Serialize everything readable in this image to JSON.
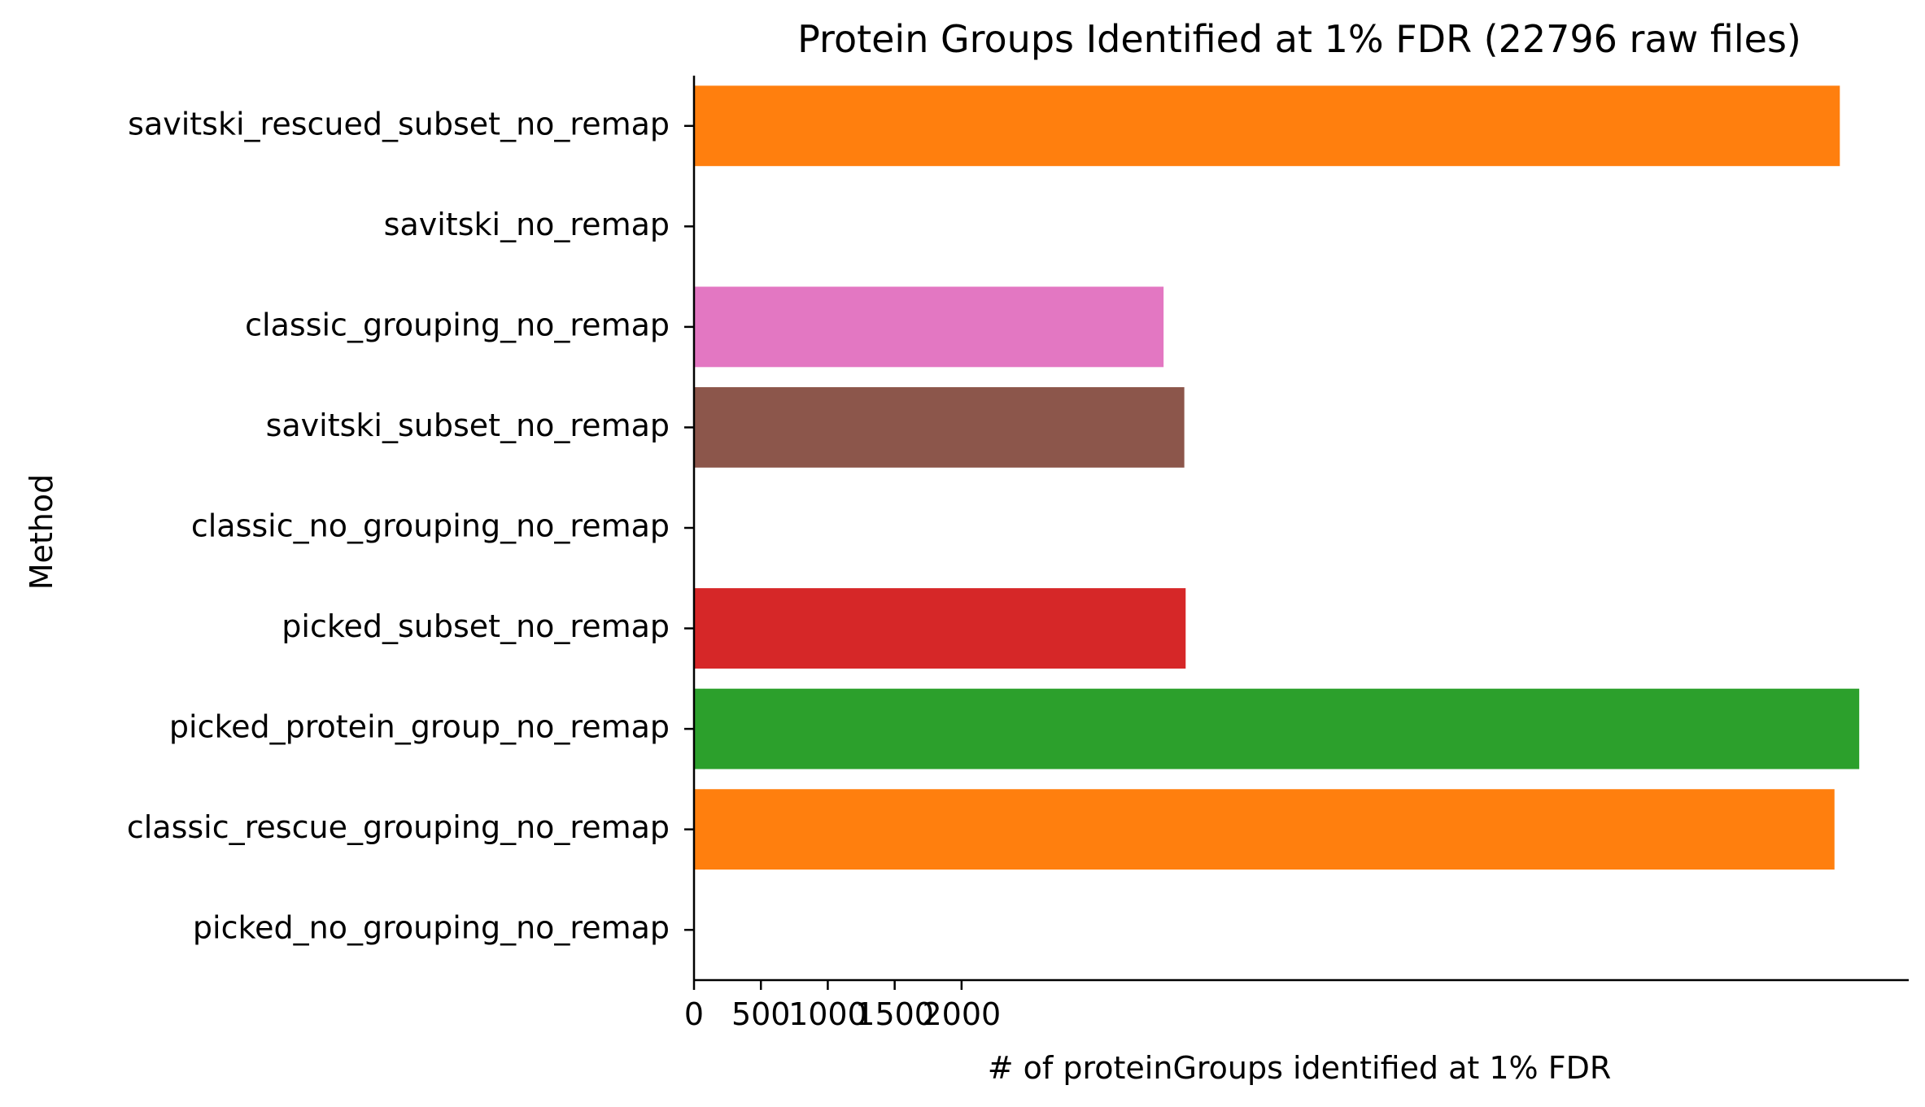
{
  "chart_data": {
    "type": "bar",
    "orientation": "horizontal",
    "title": "Protein Groups Identified at 1% FDR (22796 raw files)",
    "xlabel": "# of proteinGroups identified at 1% FDR",
    "ylabel": "Method",
    "xlim": [
      0,
      9080
    ],
    "x_ticks": [
      0,
      500,
      1000,
      1500,
      2000
    ],
    "x_tick_labels": [
      "0",
      "500",
      "1000",
      "1500",
      "2000"
    ],
    "grid": false,
    "legend": "none",
    "categories": [
      "picked_no_grouping_no_remap",
      "classic_rescue_grouping_no_remap",
      "picked_protein_group_no_remap",
      "picked_subset_no_remap",
      "classic_no_grouping_no_remap",
      "savitski_subset_no_remap",
      "classic_grouping_no_remap",
      "savitski_no_remap",
      "savitski_rescued_subset_no_remap"
    ],
    "values": [
      0,
      8525,
      8710,
      3675,
      0,
      3665,
      3510,
      0,
      8565
    ],
    "colors": [
      "#1f77b4",
      "#ff7f0e",
      "#2ca02c",
      "#d62728",
      "#9467bd",
      "#8c564b",
      "#e377c2",
      "#7f7f7f",
      "#ff7f0e"
    ]
  }
}
